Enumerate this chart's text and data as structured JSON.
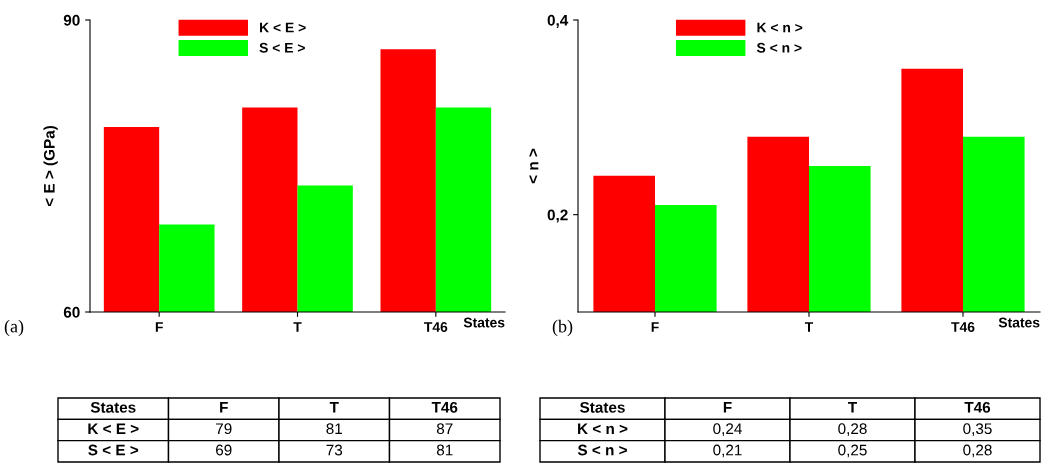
{
  "chart_data": [
    {
      "type": "bar",
      "categories": [
        "F",
        "T",
        "T46"
      ],
      "xlabel": "States",
      "ylabel": "< E > (GPa)",
      "ylim": [
        60,
        90
      ],
      "yticks": [
        60,
        90
      ],
      "legend": "top left",
      "annotations": [
        "(a)"
      ],
      "series": [
        {
          "name": "K < E >",
          "color": "#ff0000",
          "values": [
            79,
            81,
            87
          ],
          "value_labels": [
            "79",
            "81",
            "87"
          ]
        },
        {
          "name": "S < E >",
          "color": "#00ff00",
          "values": [
            69,
            73,
            81
          ],
          "value_labels": [
            "69",
            "73",
            "81"
          ]
        }
      ]
    },
    {
      "type": "bar",
      "categories": [
        "F",
        "T",
        "T46"
      ],
      "xlabel": "States",
      "ylabel": "< n >",
      "ylim": [
        0.1,
        0.4
      ],
      "yticks": [
        {
          "value": 0.2,
          "label": "0,2"
        },
        {
          "value": 0.4,
          "label": "0,4"
        }
      ],
      "legend": "top left",
      "annotations": [
        "(b)"
      ],
      "series": [
        {
          "name": "K < n >",
          "color": "#ff0000",
          "values": [
            0.24,
            0.28,
            0.35
          ],
          "value_labels": [
            "0,24",
            "0,28",
            "0,35"
          ]
        },
        {
          "name": "S < n >",
          "color": "#00ff00",
          "values": [
            0.21,
            0.25,
            0.28
          ],
          "value_labels": [
            "0,21",
            "0,25",
            "0,28"
          ]
        }
      ]
    }
  ]
}
